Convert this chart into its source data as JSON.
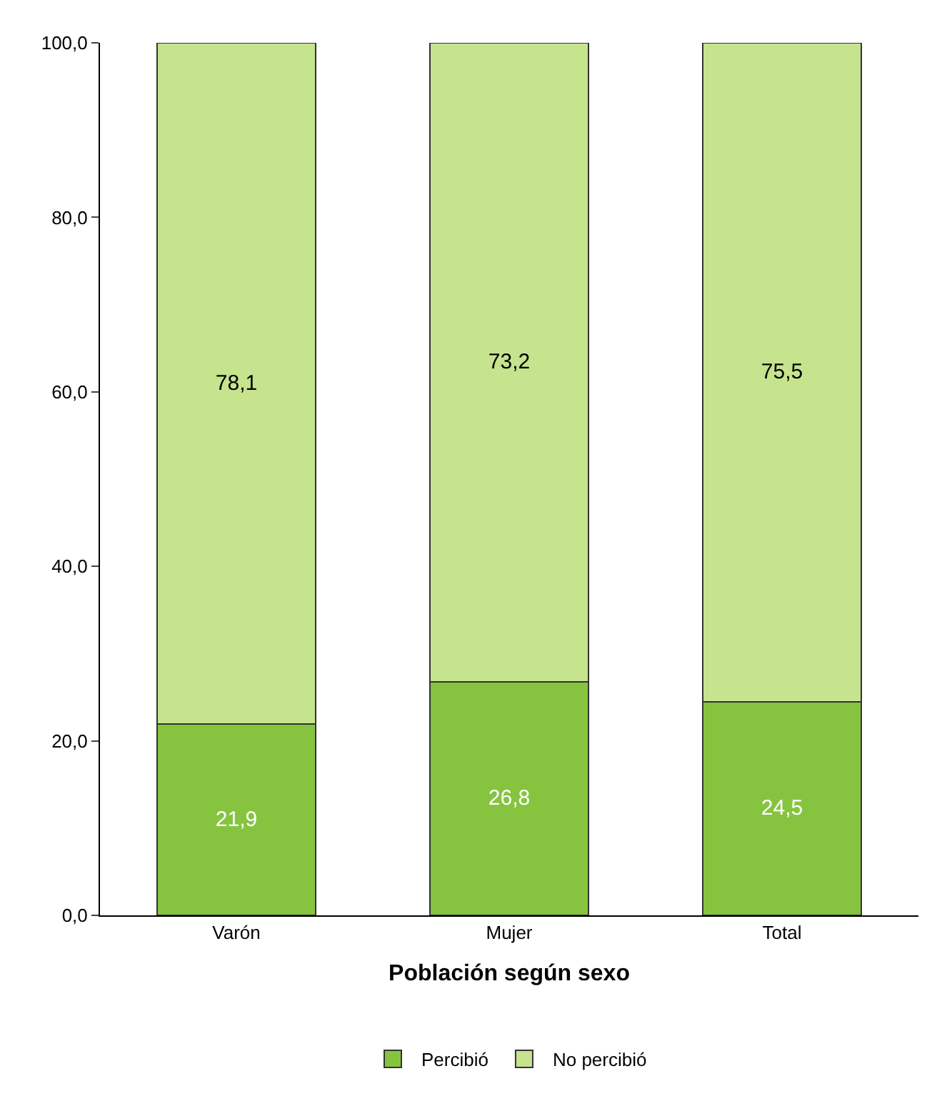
{
  "chart_data": {
    "type": "bar",
    "stacked": true,
    "xlabel": "Población según sexo",
    "categories": [
      "Varón",
      "Mujer",
      "Total"
    ],
    "series": [
      {
        "name": "Percibió",
        "color": "#86c440",
        "values": [
          21.9,
          26.8,
          24.5
        ],
        "value_labels": [
          "21,9",
          "26,8",
          "24,5"
        ]
      },
      {
        "name": "No percibió",
        "color": "#c6e38e",
        "values": [
          78.1,
          73.2,
          75.5
        ],
        "value_labels": [
          "78,1",
          "73,2",
          "75,5"
        ]
      }
    ],
    "ylim": [
      0,
      100
    ],
    "yticks": [
      {
        "value": 0,
        "label": "0,0"
      },
      {
        "value": 20,
        "label": "20,0"
      },
      {
        "value": 40,
        "label": "40,0"
      },
      {
        "value": 60,
        "label": "60,0"
      },
      {
        "value": 80,
        "label": "80,0"
      },
      {
        "value": 100,
        "label": "100,0"
      }
    ],
    "legend": "bottom"
  }
}
